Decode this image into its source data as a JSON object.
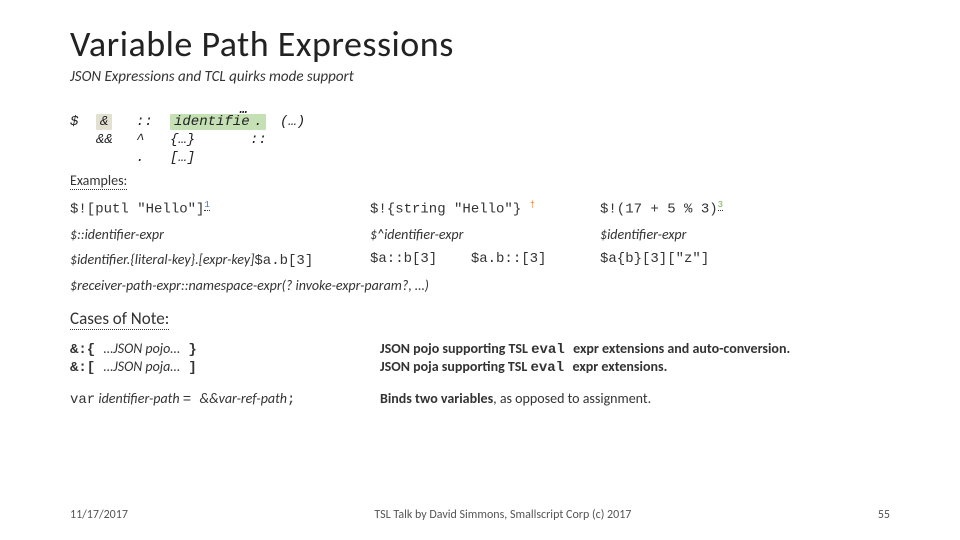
{
  "title": "Variable Path Expressions",
  "subtitle": "JSON Expressions and TCL quirks mode support",
  "syntax": {
    "ellipsis": "…",
    "r1": {
      "c1": "$",
      "c2": "&",
      "c3": "::",
      "c4": "identifier",
      "c5": ".",
      "c6": "(…)"
    },
    "r2": {
      "c1": "",
      "c2": "&&",
      "c3": "^",
      "c4": "{…}",
      "c5": "::",
      "c6": ""
    },
    "r3": {
      "c1": "",
      "c2": "",
      "c3": ".",
      "c4": "[…]",
      "c5": "",
      "c6": ""
    }
  },
  "examples_label": "Examples:",
  "ex": {
    "r1c1": "$![putl \"Hello\"]",
    "r1c1_sup": "1",
    "r1c2": "$!{string \"Hello\"}",
    "r1c2_dagger": "†",
    "r1c3": "$!(17 + 5 % 3)",
    "r1c3_sup": "3",
    "r2c1": "$::identifier-expr",
    "r2c2": "$^identifier-expr",
    "r2c3": "$identifier-expr",
    "r3c1_a": "$identifier.",
    "r3c1_b": "{literal-key}",
    "r3c1_c": ".[expr-key]",
    "r3c1_d": "$a.b[3]",
    "r3c2_a": "$a::b[3]",
    "r3c2_b": "$a.b::[3]",
    "r3c3": "$a{b}[3][\"z\"]"
  },
  "receiver": "$receiver-path-expr::namespace-expr(? invoke-expr-param?, …)",
  "cases_label": "Cases of Note:",
  "cases": {
    "r1a_pre": "&:{ ",
    "r1a_mid": "…JSON pojo…",
    "r1a_suf": " }",
    "r1b_pre": "&:[ ",
    "r1b_mid": "…JSON poja…",
    "r1b_suf": " ]",
    "r1_desc_a_pre": "JSON pojo supporting TSL ",
    "r1_desc_a_code": "eval ",
    "r1_desc_a_suf": "expr extensions and auto-conversion.",
    "r1_desc_b_pre": "JSON poja supporting TSL ",
    "r1_desc_b_code": "eval ",
    "r1_desc_b_suf": "expr extensions.",
    "r2_left_code": "var",
    "r2_left_mid": " identifier-path ",
    "r2_left_eq": "= ",
    "r2_left_ref": "&&var-ref-path",
    "r2_left_semi": ";",
    "r2_right_bold": "Binds two variables",
    "r2_right_suf": ", as opposed to assignment."
  },
  "footer": {
    "date": "11/17/2017",
    "center": "TSL Talk by David Simmons, Smallscript Corp (c) 2017",
    "page": "55"
  }
}
